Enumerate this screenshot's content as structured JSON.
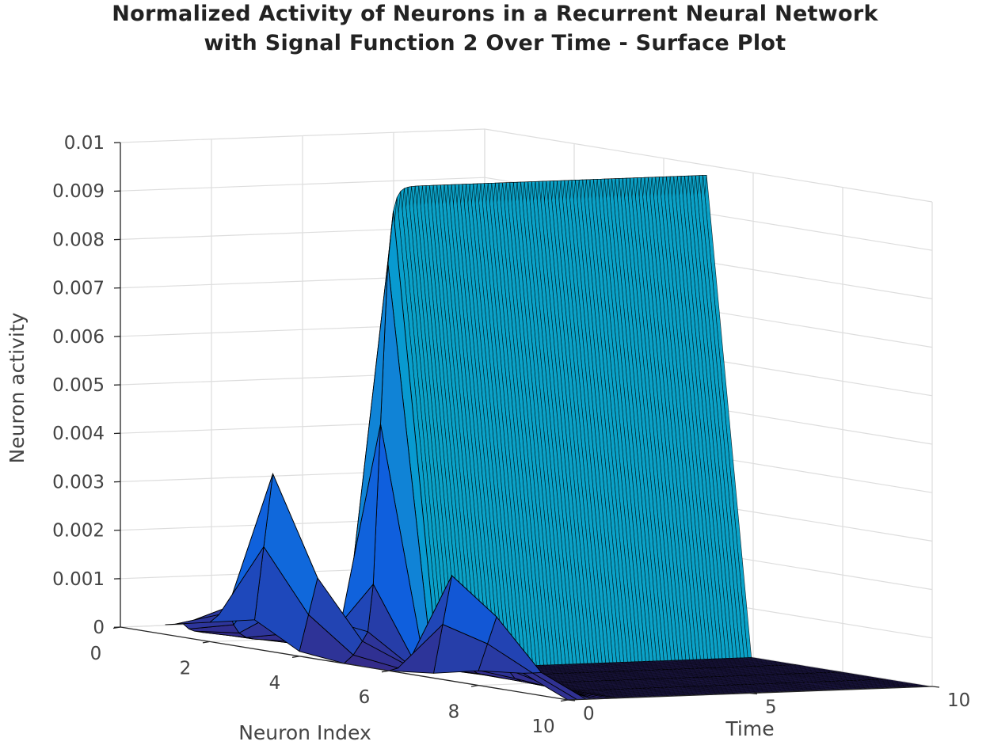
{
  "chart_data": {
    "type": "surface",
    "title": [
      "Normalized Activity of Neurons in a Recurrent Neural Network",
      "with Signal Function 2 Over Time - Surface Plot"
    ],
    "xlabel": "Neuron Index",
    "ylabel": "Time",
    "zlabel": "Neuron activity",
    "xlim": [
      0,
      10
    ],
    "ylim": [
      0,
      10
    ],
    "zlim": [
      0,
      0.01
    ],
    "x_ticks": [
      "0",
      "2",
      "4",
      "6",
      "8",
      "10"
    ],
    "y_ticks": [
      "0",
      "5",
      "10"
    ],
    "z_ticks": [
      "0",
      "0.001",
      "0.002",
      "0.003",
      "0.004",
      "0.005",
      "0.006",
      "0.007",
      "0.008",
      "0.009",
      "0.01"
    ],
    "colormap": "parula",
    "grid": true,
    "neuron_index": [
      1,
      2,
      3,
      4,
      5,
      6,
      7,
      8,
      9,
      10
    ],
    "initial_activity_t0": [
      0.0002,
      0.0004,
      0.0006,
      0.0001,
      0.0,
      0.0,
      0.0001,
      0.0003,
      0.0004,
      0.0
    ],
    "peak_activity_early": [
      0.0002,
      0.0007,
      0.0036,
      0.0016,
      0.0003,
      0.0001,
      0.0021,
      0.0014,
      0.0004,
      0.0
    ],
    "steady_state_neuron5": 0.0098,
    "steady_state_others": 0.0
  }
}
